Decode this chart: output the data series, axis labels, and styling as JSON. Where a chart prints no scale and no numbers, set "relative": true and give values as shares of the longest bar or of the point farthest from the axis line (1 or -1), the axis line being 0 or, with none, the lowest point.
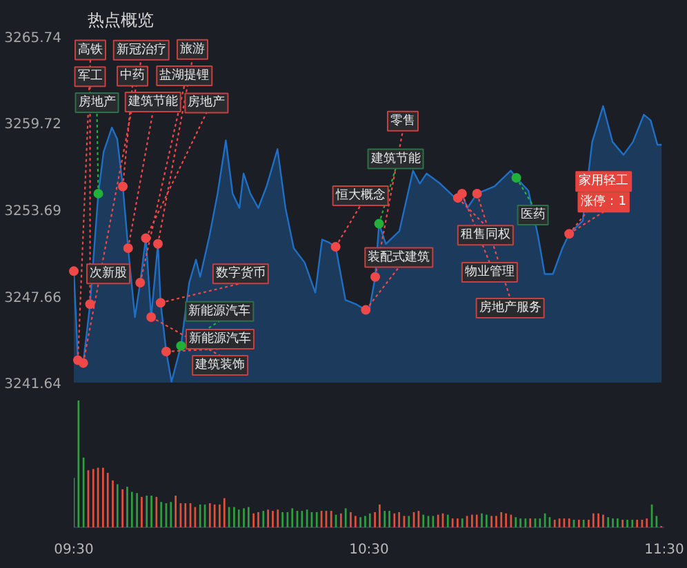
{
  "chart_data": [
    {
      "type": "area",
      "title": "热点概览",
      "xlim": [
        9.5,
        11.5
      ],
      "ylim": [
        3241.64,
        3265.74
      ],
      "yticks": [
        3241.64,
        3247.66,
        3253.69,
        3259.72,
        3265.74
      ],
      "tick_labels": "y",
      "grid": false,
      "x": [
        9.5,
        9.514,
        9.532,
        9.555,
        9.583,
        9.601,
        9.629,
        9.647,
        9.666,
        9.684,
        9.707,
        9.725,
        9.744,
        9.762,
        9.785,
        9.794,
        9.813,
        9.831,
        9.849,
        9.863,
        9.891,
        9.914,
        9.928,
        9.96,
        9.987,
        10.015,
        10.038,
        10.061,
        10.075,
        10.098,
        10.125,
        10.153,
        10.19,
        10.217,
        10.245,
        10.282,
        10.318,
        10.341,
        10.364,
        10.387,
        10.42,
        10.456,
        10.489,
        10.502,
        10.521,
        10.534,
        10.557,
        10.603,
        10.649,
        10.672,
        10.695,
        10.741,
        10.787,
        10.801,
        10.815,
        10.833,
        10.866,
        10.925,
        10.98,
        10.999,
        11.04,
        11.072,
        11.095,
        11.123,
        11.155,
        11.178,
        11.224,
        11.256,
        11.293,
        11.325,
        11.362,
        11.394,
        11.431,
        11.454,
        11.477,
        11.491
      ],
      "series": [
        {
          "type": "area",
          "color": "#1f6fc5",
          "values": [
            3249.4,
            3243.2,
            3243.0,
            3247.1,
            3254.8,
            3257.7,
            3259.4,
            3258.6,
            3255.3,
            3251.0,
            3246.2,
            3248.6,
            3251.7,
            3246.2,
            3251.3,
            3247.2,
            3243.8,
            3241.7,
            3243.1,
            3244.2,
            3248.6,
            3250.2,
            3249.0,
            3251.9,
            3254.8,
            3258.5,
            3254.8,
            3253.8,
            3256.2,
            3254.8,
            3253.8,
            3255.3,
            3257.9,
            3253.8,
            3251.0,
            3250.0,
            3247.9,
            3251.6,
            3251.4,
            3251.1,
            3247.4,
            3247.1,
            3246.7,
            3246.8,
            3249.0,
            3252.7,
            3251.3,
            3252.2,
            3256.4,
            3255.5,
            3256.2,
            3255.5,
            3254.6,
            3254.5,
            3254.8,
            3253.8,
            3254.8,
            3255.3,
            3256.4,
            3255.9,
            3255.0,
            3251.9,
            3249.2,
            3249.2,
            3251.0,
            3252.0,
            3252.9,
            3258.4,
            3260.9,
            3258.4,
            3257.5,
            3258.4,
            3260.3,
            3259.9,
            3258.2,
            3258.2
          ]
        },
        {
          "type": "scatter",
          "x": [
            9.532,
            9.785,
            9.514,
            9.555,
            9.666,
            9.725,
            9.684,
            9.744,
            9.5,
            9.794,
            9.762,
            9.813,
            9.863,
            9.583,
            10.387,
            10.489,
            10.521,
            10.534,
            10.801,
            10.815,
            10.866,
            10.999,
            11.178
          ],
          "values": [
            3243.0,
            3251.3,
            3243.2,
            3247.1,
            3255.3,
            3248.6,
            3251.0,
            3251.7,
            3249.4,
            3247.2,
            3246.2,
            3243.8,
            3244.2,
            3254.8,
            3251.1,
            3246.7,
            3249.0,
            3252.7,
            3254.5,
            3254.8,
            3254.8,
            3255.9,
            3252.0
          ],
          "colors": [
            "#f04848",
            "#f04848",
            "#f04848",
            "#f04848",
            "#f04848",
            "#f04848",
            "#f04848",
            "#f04848",
            "#f04848",
            "#f04848",
            "#f04848",
            "#f04848",
            "#22b03a",
            "#22b03a",
            "#f04848",
            "#f04848",
            "#f04848",
            "#22b03a",
            "#f04848",
            "#f04848",
            "#f04848",
            "#22b03a",
            "#f04848"
          ]
        }
      ],
      "annotations": [
        {
          "text": "新冠治疗",
          "x": 9.532,
          "y": 3243.0
        },
        {
          "text": "旅游",
          "x": 9.785,
          "y": 3251.3
        },
        {
          "text": "高铁",
          "x": 9.514,
          "y": 3243.2
        },
        {
          "text": "军工",
          "x": 9.555,
          "y": 3247.1
        },
        {
          "text": "中药",
          "x": 9.666,
          "y": 3255.3
        },
        {
          "text": "盐湖提锂",
          "x": 9.725,
          "y": 3248.6
        },
        {
          "text": "建筑节能",
          "x": 9.684,
          "y": 3251.0
        },
        {
          "text": "房地产",
          "x": 9.744,
          "y": 3251.7
        },
        {
          "text": "次新股",
          "x": 9.5,
          "y": 3249.4
        },
        {
          "text": "数字货币",
          "x": 9.794,
          "y": 3247.2
        },
        {
          "text": "建筑装饰",
          "x": 9.762,
          "y": 3246.2
        },
        {
          "text": "新能源汽车",
          "x": 9.813,
          "y": 3243.8
        },
        {
          "text": "新能源汽车",
          "x": 9.863,
          "y": 3244.2
        },
        {
          "text": "房地产",
          "x": 9.583,
          "y": 3254.8
        },
        {
          "text": "恒大概念",
          "x": 10.387,
          "y": 3251.1
        },
        {
          "text": "装配式建筑",
          "x": 10.489,
          "y": 3246.7
        },
        {
          "text": "零售",
          "x": 10.521,
          "y": 3249.0
        },
        {
          "text": "建筑节能",
          "x": 10.534,
          "y": 3252.7
        },
        {
          "text": "租售同权",
          "x": 10.801,
          "y": 3254.5
        },
        {
          "text": "物业管理",
          "x": 10.815,
          "y": 3254.8
        },
        {
          "text": "房地产服务",
          "x": 10.866,
          "y": 3254.8
        },
        {
          "text": "医药",
          "x": 10.999,
          "y": 3255.9
        },
        {
          "text": "家用轻工",
          "x": 11.178,
          "y": 3252.0
        },
        {
          "text": "涨停：1",
          "x": 11.178,
          "y": 3252.0
        }
      ]
    },
    {
      "type": "bar",
      "relative": true,
      "xlim": [
        9.5,
        11.5
      ],
      "xticks": [
        {
          "value": 9.5,
          "label": "09:30"
        },
        {
          "value": 10.5,
          "label": "10:30"
        },
        {
          "value": 11.5,
          "label": "11:30"
        }
      ],
      "tick_labels": "x",
      "grid": false,
      "x": [
        9.5,
        9.516,
        9.533,
        9.549,
        9.566,
        9.582,
        9.599,
        9.615,
        9.632,
        9.648,
        9.665,
        9.681,
        9.697,
        9.714,
        9.73,
        9.747,
        9.763,
        9.78,
        9.796,
        9.813,
        9.829,
        9.845,
        9.862,
        9.878,
        9.895,
        9.911,
        9.928,
        9.944,
        9.961,
        9.977,
        9.994,
        10.01,
        10.026,
        10.043,
        10.059,
        10.076,
        10.092,
        10.109,
        10.125,
        10.142,
        10.158,
        10.174,
        10.191,
        10.207,
        10.224,
        10.24,
        10.257,
        10.273,
        10.29,
        10.306,
        10.323,
        10.339,
        10.355,
        10.372,
        10.388,
        10.405,
        10.421,
        10.438,
        10.454,
        10.471,
        10.487,
        10.503,
        10.52,
        10.536,
        10.553,
        10.569,
        10.586,
        10.602,
        10.619,
        10.635,
        10.652,
        10.668,
        10.684,
        10.701,
        10.717,
        10.734,
        10.75,
        10.767,
        10.783,
        10.8,
        10.816,
        10.832,
        10.849,
        10.865,
        10.882,
        10.898,
        10.915,
        10.931,
        10.948,
        10.964,
        10.981,
        10.997,
        11.013,
        11.03,
        11.046,
        11.063,
        11.079,
        11.096,
        11.112,
        11.129,
        11.145,
        11.161,
        11.178,
        11.194,
        11.211,
        11.227,
        11.244,
        11.26,
        11.277,
        11.293,
        11.31,
        11.326,
        11.342,
        11.359,
        11.375,
        11.392,
        11.408,
        11.425,
        11.441,
        11.458,
        11.474,
        11.49
      ],
      "values": [
        0.39,
        1,
        0.55,
        0.45,
        0.46,
        0.47,
        0.47,
        0.43,
        0.37,
        0.34,
        0.3,
        0.32,
        0.28,
        0.27,
        0.24,
        0.25,
        0.25,
        0.24,
        0.2,
        0.19,
        0.2,
        0.25,
        0.19,
        0.19,
        0.19,
        0.16,
        0.18,
        0.18,
        0.19,
        0.18,
        0.18,
        0.23,
        0.16,
        0.16,
        0.14,
        0.15,
        0.16,
        0.11,
        0.12,
        0.13,
        0.14,
        0.13,
        0.14,
        0.12,
        0.12,
        0.15,
        0.13,
        0.13,
        0.14,
        0.12,
        0.12,
        0.13,
        0.13,
        0.13,
        0.1,
        0.11,
        0.15,
        0.12,
        0.09,
        0.08,
        0.09,
        0.11,
        0.12,
        0.18,
        0.13,
        0.13,
        0.11,
        0.12,
        0.09,
        0.09,
        0.12,
        0.13,
        0.1,
        0.09,
        0.09,
        0.1,
        0.11,
        0.1,
        0.07,
        0.07,
        0.07,
        0.09,
        0.1,
        0.1,
        0.11,
        0.1,
        0.09,
        0.09,
        0.12,
        0.11,
        0.1,
        0.08,
        0.07,
        0.07,
        0.07,
        0.07,
        0.07,
        0.11,
        0.08,
        0.06,
        0.07,
        0.07,
        0.07,
        0.06,
        0.06,
        0.06,
        0.06,
        0.11,
        0.11,
        0.1,
        0.08,
        0.07,
        0.07,
        0.06,
        0.06,
        0.06,
        0.06,
        0.06,
        0.07,
        0.18,
        0.09,
        0.01
      ],
      "colors": [
        "#2e9e3f",
        "#2e9e3f",
        "#2e9e3f",
        "#e0513c",
        "#e0513c",
        "#e0513c",
        "#e0513c",
        "#e0513c",
        "#e0513c",
        "#2e9e3f",
        "#e0513c",
        "#2e9e3f",
        "#2e9e3f",
        "#2e9e3f",
        "#e0513c",
        "#2e9e3f",
        "#2e9e3f",
        "#e0513c",
        "#2e9e3f",
        "#2e9e3f",
        "#2e9e3f",
        "#e0513c",
        "#e0513c",
        "#e0513c",
        "#e0513c",
        "#e0513c",
        "#2e9e3f",
        "#2e9e3f",
        "#e0513c",
        "#e0513c",
        "#e0513c",
        "#e0513c",
        "#2e9e3f",
        "#2e9e3f",
        "#2e9e3f",
        "#2e9e3f",
        "#2e9e3f",
        "#e0513c",
        "#e0513c",
        "#2e9e3f",
        "#e0513c",
        "#e0513c",
        "#e0513c",
        "#2e9e3f",
        "#2e9e3f",
        "#2e9e3f",
        "#2e9e3f",
        "#2e9e3f",
        "#2e9e3f",
        "#2e9e3f",
        "#2e9e3f",
        "#e0513c",
        "#e0513c",
        "#e0513c",
        "#2e9e3f",
        "#e0513c",
        "#2e9e3f",
        "#e0513c",
        "#e0513c",
        "#2e9e3f",
        "#2e9e3f",
        "#2e9e3f",
        "#e0513c",
        "#e0513c",
        "#2e9e3f",
        "#2e9e3f",
        "#e0513c",
        "#e0513c",
        "#e0513c",
        "#2e9e3f",
        "#e0513c",
        "#e0513c",
        "#2e9e3f",
        "#2e9e3f",
        "#2e9e3f",
        "#e0513c",
        "#e0513c",
        "#2e9e3f",
        "#e0513c",
        "#e0513c",
        "#2e9e3f",
        "#e0513c",
        "#e0513c",
        "#e0513c",
        "#2e9e3f",
        "#2e9e3f",
        "#e0513c",
        "#e0513c",
        "#e0513c",
        "#e0513c",
        "#e0513c",
        "#2e9e3f",
        "#2e9e3f",
        "#2e9e3f",
        "#e0513c",
        "#2e9e3f",
        "#2e9e3f",
        "#2e9e3f",
        "#2e9e3f",
        "#e0513c",
        "#e0513c",
        "#e0513c",
        "#e0513c",
        "#2e9e3f",
        "#e0513c",
        "#2e9e3f",
        "#e0513c",
        "#e0513c",
        "#e0513c",
        "#e0513c",
        "#2e9e3f",
        "#2e9e3f",
        "#2e9e3f",
        "#e0513c",
        "#2e9e3f",
        "#2e9e3f",
        "#e0513c",
        "#e0513c",
        "#e0513c",
        "#2e9e3f",
        "#2e9e3f",
        "#e0513c"
      ]
    }
  ]
}
